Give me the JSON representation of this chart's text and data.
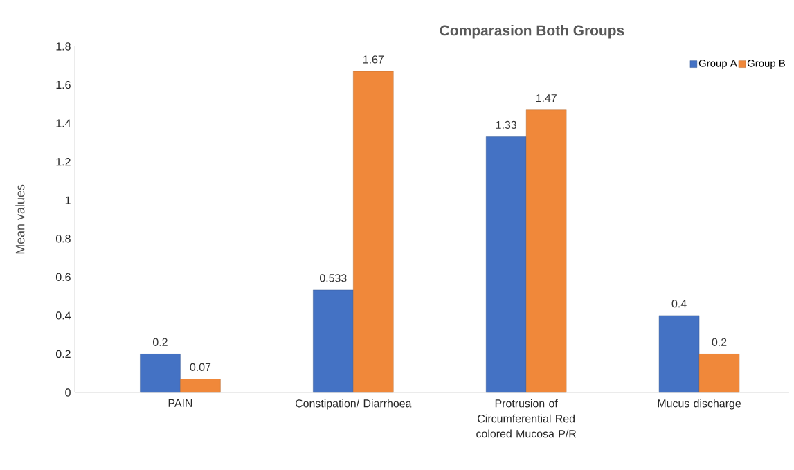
{
  "chart_data": {
    "type": "bar",
    "title": "Comparasion  Both Groups",
    "ylabel": "Mean values",
    "categories": [
      "PAIN",
      "Constipation/ Diarrhoea",
      "Protrusion of Circumferential Red colored Mucosa P/R",
      "Mucus discharge"
    ],
    "series": [
      {
        "name": "Group A",
        "color": "#4472c4",
        "values": [
          0.2,
          0.533,
          1.33,
          0.4
        ]
      },
      {
        "name": "Group B",
        "color": "#f0883a",
        "values": [
          0.07,
          1.67,
          1.47,
          0.2
        ]
      }
    ],
    "ylim": [
      0,
      1.8
    ],
    "yticks": [
      0,
      0.2,
      0.4,
      0.6,
      0.8,
      1,
      1.2,
      1.4,
      1.6,
      1.8
    ],
    "data_labels": true,
    "legend": "top right",
    "grid": false
  }
}
